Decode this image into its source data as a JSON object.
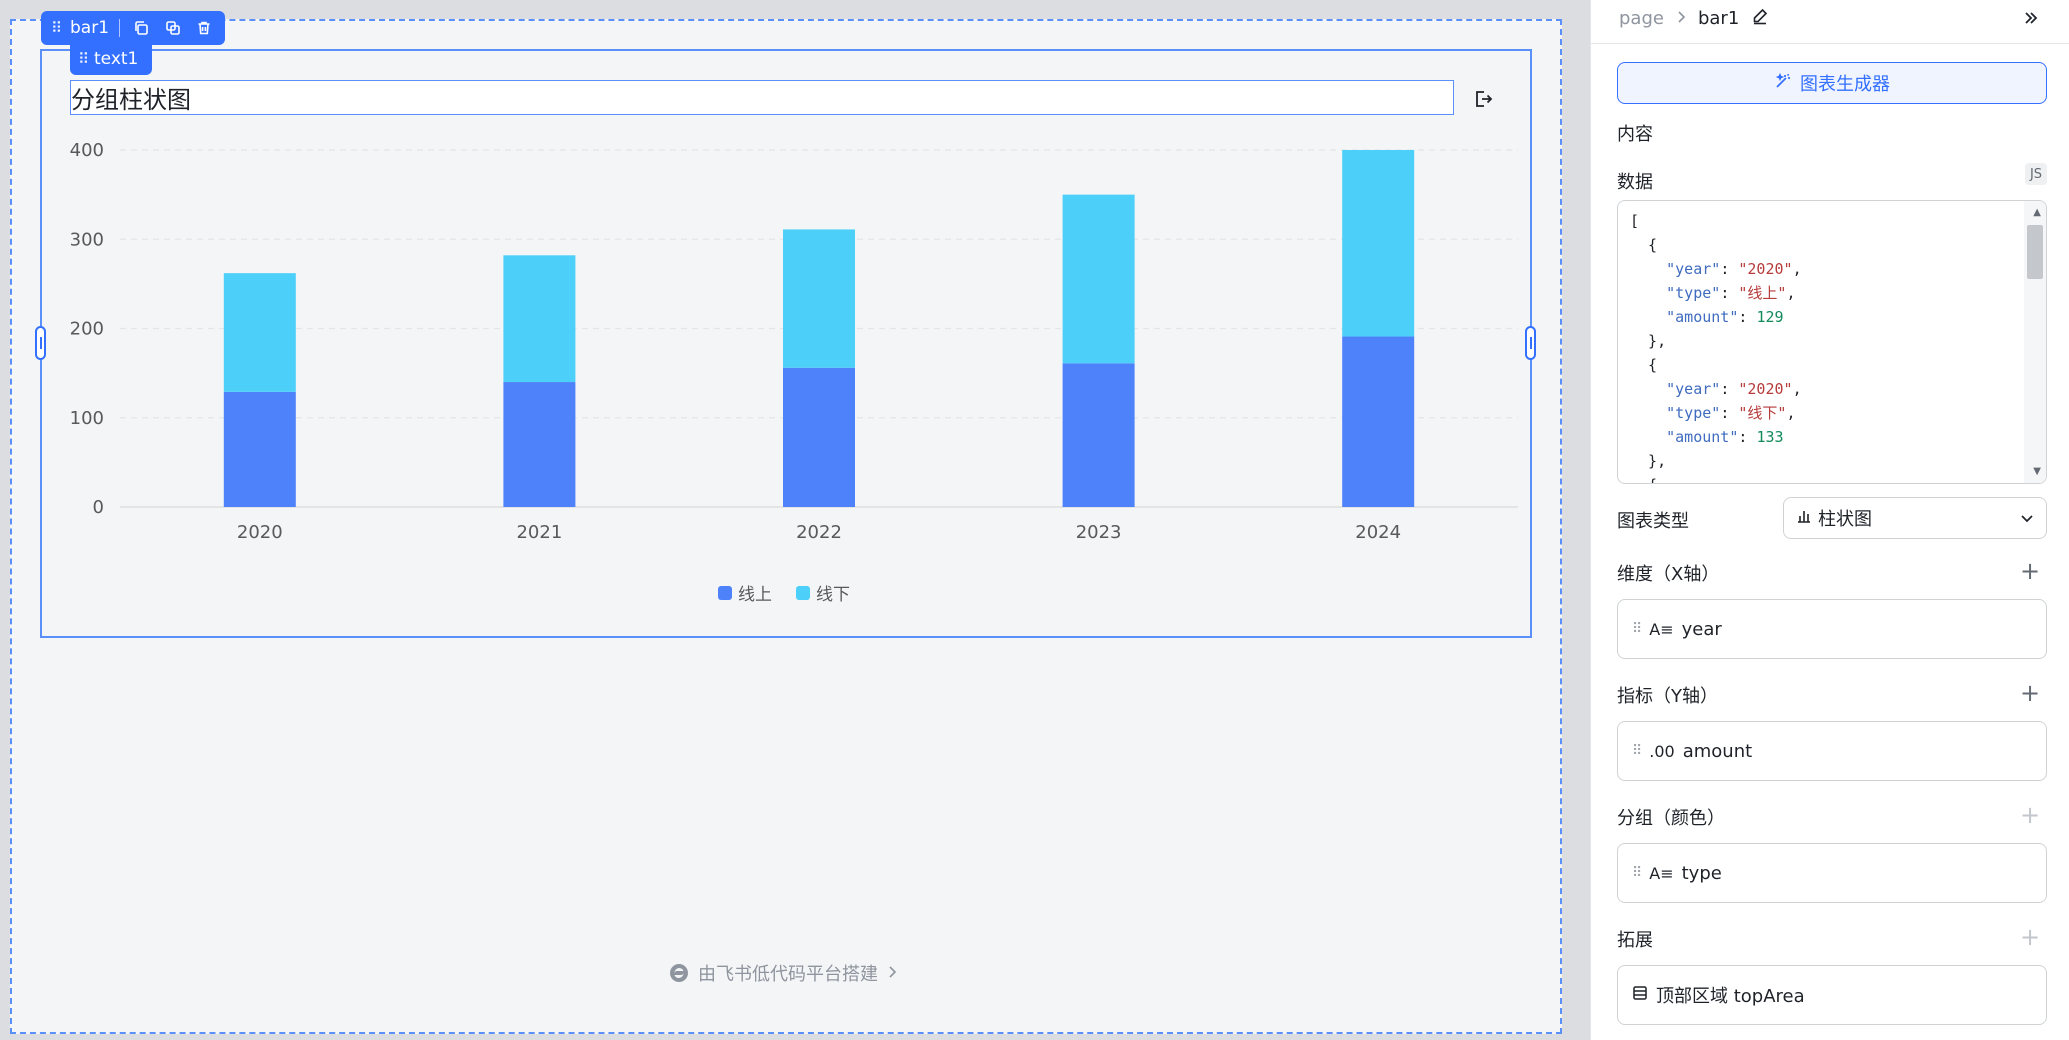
{
  "canvas": {
    "selection": {
      "component": "bar1",
      "child": "text1"
    },
    "footer": {
      "brand_text": "由飞书低代码平台搭建"
    }
  },
  "chart_data": {
    "type": "bar",
    "stacked": true,
    "title": "分组柱状图",
    "categories": [
      "2020",
      "2021",
      "2022",
      "2023",
      "2024"
    ],
    "series": [
      {
        "name": "线上",
        "color": "#4e82fb",
        "values": [
          129,
          140,
          156,
          161,
          191
        ]
      },
      {
        "name": "线下",
        "color": "#4ccff8",
        "values": [
          133,
          142,
          155,
          189,
          209
        ]
      }
    ],
    "ylim": [
      0,
      400
    ],
    "yticks": [
      "0",
      "100",
      "200",
      "300",
      "400"
    ],
    "grid": true,
    "legend": "bottom-center"
  },
  "panel": {
    "breadcrumb": {
      "root": "page",
      "current": "bar1"
    },
    "generator_button": "图表生成器",
    "content_label": "内容",
    "data_label": "数据",
    "js_badge": "JS",
    "data_code_lines": [
      "[",
      "  {",
      "    \"year\": \"2020\",",
      "    \"type\": \"线上\",",
      "    \"amount\": 129",
      "  },",
      "  {",
      "    \"year\": \"2020\",",
      "    \"type\": \"线下\",",
      "    \"amount\": 133",
      "  },",
      "  {"
    ],
    "chart_type_label": "图表类型",
    "chart_type_value": "柱状图",
    "dimension_label": "维度（X轴）",
    "dimension_field": {
      "type": "A≡",
      "name": "year"
    },
    "metric_label": "指标（Y轴）",
    "metric_field": {
      "type": ".00",
      "name": "amount"
    },
    "group_label": "分组（颜色）",
    "group_field": {
      "type": "A≡",
      "name": "type"
    },
    "extend_label": "拓展",
    "extend_field": {
      "name": "顶部区域 topArea"
    }
  }
}
